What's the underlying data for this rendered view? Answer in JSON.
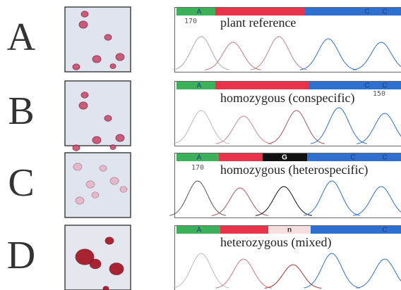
{
  "panels": [
    {
      "letter": "A",
      "bases": [
        "A",
        "C",
        "C"
      ],
      "position": "170",
      "caption": "plant reference"
    },
    {
      "letter": "B",
      "bases": [
        "A",
        "C",
        "C"
      ],
      "position": "150",
      "caption": "homozygous (conspecific)"
    },
    {
      "letter": "C",
      "bases": [
        "A",
        "G",
        "C",
        "C"
      ],
      "position": "170",
      "caption": "homozygous (heterospecific)"
    },
    {
      "letter": "D",
      "bases": [
        "A",
        "n",
        "C"
      ],
      "caption": "heterozygous (mixed)"
    }
  ]
}
